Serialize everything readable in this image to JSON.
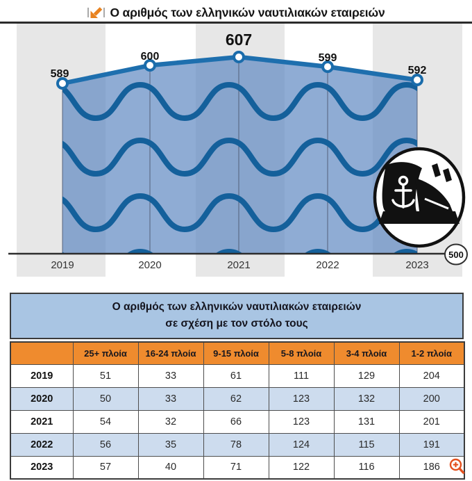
{
  "header": {
    "title": "Ο αριθμός των ελληνικών ναυτιλιακών εταιρειών",
    "icon": "arrow-down-left-icon",
    "accent_color": "#e8821f"
  },
  "chart_data": {
    "type": "area",
    "title": "Ο αριθμός των ελληνικών ναυτιλιακών εταιρειών",
    "categories": [
      "2019",
      "2020",
      "2021",
      "2022",
      "2023"
    ],
    "values": [
      589,
      600,
      607,
      599,
      592
    ],
    "emphasized_value": 607,
    "baseline": 500,
    "baseline_label": "500",
    "ylim": [
      500,
      620
    ],
    "xlabel": "",
    "ylabel": "",
    "legend": false,
    "decoration": "sea-waves-and-ship-emblem",
    "colors": {
      "line": "#1e6fae",
      "wave": "#14609b",
      "area_fill": "rgba(100,140,195,0.72)",
      "stripe_gray": "#e7e7e7"
    }
  },
  "table": {
    "title_line1": "Ο αριθμός των ελληνικών ναυτιλιακών εταιρειών",
    "title_line2": "σε σχέση με τον στόλο τους",
    "columns": [
      "",
      "25+ πλοία",
      "16-24 πλοία",
      "9-15 πλοία",
      "5-8 πλοία",
      "3-4 πλοία",
      "1-2 πλοία"
    ],
    "rows": [
      {
        "year": "2019",
        "values": [
          51,
          33,
          61,
          111,
          129,
          204
        ]
      },
      {
        "year": "2020",
        "values": [
          50,
          33,
          62,
          123,
          132,
          200
        ]
      },
      {
        "year": "2021",
        "values": [
          54,
          32,
          66,
          123,
          131,
          201
        ]
      },
      {
        "year": "2022",
        "values": [
          56,
          35,
          78,
          124,
          115,
          191
        ]
      },
      {
        "year": "2023",
        "values": [
          57,
          40,
          71,
          122,
          116,
          186
        ]
      }
    ],
    "header_bg": "#ef8b2e",
    "title_bg": "#a9c5e3",
    "alt_row_bg": "#cddcee"
  },
  "misc": {
    "corner_icon": "zoom-in-icon",
    "corner_icon_color": "#e4501e"
  }
}
